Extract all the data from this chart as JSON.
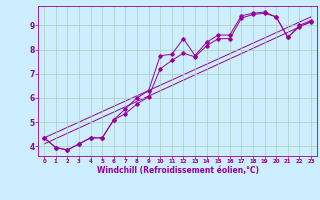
{
  "xlabel": "Windchill (Refroidissement éolien,°C)",
  "background_color": "#cceeff",
  "line_color": "#990099",
  "grid_color": "#aaccbb",
  "xlim": [
    -0.5,
    23.5
  ],
  "ylim": [
    3.6,
    9.8
  ],
  "xticks": [
    0,
    1,
    2,
    3,
    4,
    5,
    6,
    7,
    8,
    9,
    10,
    11,
    12,
    13,
    14,
    15,
    16,
    17,
    18,
    19,
    20,
    21,
    22,
    23
  ],
  "yticks": [
    4,
    5,
    6,
    7,
    8,
    9
  ],
  "line1_x": [
    0,
    1,
    2,
    3,
    4,
    5,
    6,
    7,
    8,
    9,
    10,
    11,
    12,
    13,
    14,
    15,
    16,
    17,
    18,
    19,
    20,
    21,
    22,
    23
  ],
  "line1_y": [
    4.35,
    3.95,
    3.85,
    4.1,
    4.35,
    4.35,
    5.1,
    5.55,
    6.0,
    6.3,
    7.75,
    7.8,
    8.45,
    7.75,
    8.3,
    8.6,
    8.6,
    9.4,
    9.5,
    9.55,
    9.35,
    8.5,
    9.0,
    9.2
  ],
  "line2_x": [
    0,
    1,
    2,
    3,
    4,
    5,
    6,
    7,
    8,
    9,
    10,
    11,
    12,
    13,
    14,
    15,
    16,
    17,
    18,
    19,
    20,
    21,
    22,
    23
  ],
  "line2_y": [
    4.35,
    3.95,
    3.85,
    4.1,
    4.35,
    4.35,
    5.1,
    5.35,
    5.75,
    6.05,
    7.2,
    7.55,
    7.85,
    7.7,
    8.15,
    8.45,
    8.45,
    9.3,
    9.45,
    9.5,
    9.35,
    8.5,
    8.95,
    9.15
  ],
  "line3_x": [
    0,
    23
  ],
  "line3_y": [
    4.1,
    9.15
  ],
  "line4_x": [
    0,
    23
  ],
  "line4_y": [
    4.35,
    9.35
  ]
}
